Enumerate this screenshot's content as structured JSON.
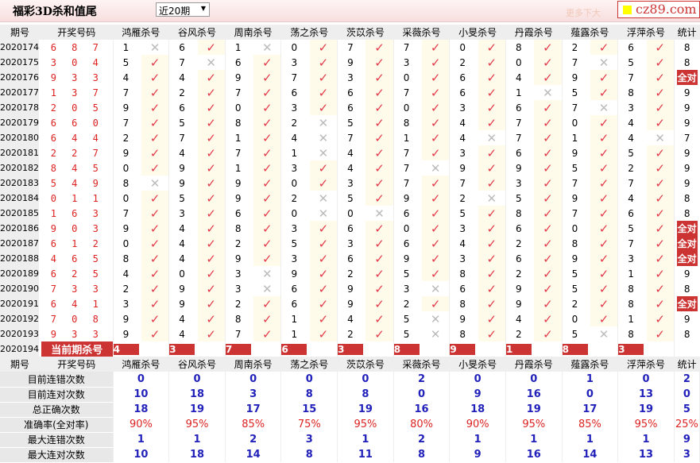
{
  "header": {
    "title": "福彩3D杀和值尾",
    "range_select": "近20期",
    "logo": "cz89.com",
    "faded_text": "更多下大"
  },
  "columns": {
    "period": "期号",
    "winning": "开奖号码",
    "stat": "统计",
    "kills": [
      "鸿雁杀号",
      "谷风杀号",
      "周南杀号",
      "荡之杀号",
      "茨苡杀号",
      "采薇杀号",
      "小旻杀号",
      "丹霞杀号",
      "薤露杀号",
      "浮萍杀号"
    ]
  },
  "marks": {
    "hit": "✓",
    "miss": "✕",
    "all_hit": "全对"
  },
  "rows": [
    {
      "period": "2020174",
      "winning": "6 8 7",
      "kills": [
        [
          1,
          0
        ],
        [
          6,
          1
        ],
        [
          1,
          0
        ],
        [
          0,
          1
        ],
        [
          7,
          1
        ],
        [
          7,
          1
        ],
        [
          0,
          1
        ],
        [
          8,
          1
        ],
        [
          2,
          1
        ],
        [
          6,
          1
        ]
      ],
      "stat": "8"
    },
    {
      "period": "2020175",
      "winning": "3 0 4",
      "kills": [
        [
          5,
          1
        ],
        [
          7,
          0
        ],
        [
          6,
          1
        ],
        [
          3,
          1
        ],
        [
          9,
          1
        ],
        [
          3,
          1
        ],
        [
          2,
          1
        ],
        [
          0,
          1
        ],
        [
          7,
          0
        ],
        [
          5,
          1
        ]
      ],
      "stat": "8"
    },
    {
      "period": "2020176",
      "winning": "9 3 3",
      "kills": [
        [
          4,
          1
        ],
        [
          4,
          1
        ],
        [
          9,
          1
        ],
        [
          7,
          1
        ],
        [
          3,
          1
        ],
        [
          0,
          1
        ],
        [
          6,
          1
        ],
        [
          4,
          1
        ],
        [
          9,
          1
        ],
        [
          7,
          1
        ]
      ],
      "stat": "全对"
    },
    {
      "period": "2020177",
      "winning": "1 3 7",
      "kills": [
        [
          7,
          1
        ],
        [
          2,
          1
        ],
        [
          7,
          1
        ],
        [
          6,
          1
        ],
        [
          6,
          1
        ],
        [
          7,
          1
        ],
        [
          6,
          1
        ],
        [
          1,
          0
        ],
        [
          5,
          1
        ],
        [
          8,
          1
        ]
      ],
      "stat": "9"
    },
    {
      "period": "2020178",
      "winning": "2 0 5",
      "kills": [
        [
          9,
          1
        ],
        [
          6,
          1
        ],
        [
          0,
          1
        ],
        [
          3,
          1
        ],
        [
          6,
          1
        ],
        [
          0,
          1
        ],
        [
          3,
          1
        ],
        [
          6,
          1
        ],
        [
          7,
          0
        ],
        [
          3,
          1
        ]
      ],
      "stat": "9"
    },
    {
      "period": "2020179",
      "winning": "6 6 0",
      "kills": [
        [
          7,
          1
        ],
        [
          5,
          1
        ],
        [
          8,
          1
        ],
        [
          2,
          0
        ],
        [
          5,
          1
        ],
        [
          8,
          1
        ],
        [
          4,
          1
        ],
        [
          7,
          1
        ],
        [
          0,
          1
        ],
        [
          4,
          1
        ]
      ],
      "stat": "9"
    },
    {
      "period": "2020180",
      "winning": "6 4 4",
      "kills": [
        [
          2,
          1
        ],
        [
          7,
          1
        ],
        [
          1,
          1
        ],
        [
          4,
          0
        ],
        [
          7,
          1
        ],
        [
          1,
          1
        ],
        [
          4,
          0
        ],
        [
          7,
          1
        ],
        [
          1,
          1
        ],
        [
          4,
          0
        ]
      ],
      "stat": "7"
    },
    {
      "period": "2020181",
      "winning": "2 2 7",
      "kills": [
        [
          9,
          1
        ],
        [
          4,
          1
        ],
        [
          7,
          1
        ],
        [
          1,
          0
        ],
        [
          4,
          1
        ],
        [
          7,
          1
        ],
        [
          3,
          1
        ],
        [
          6,
          1
        ],
        [
          9,
          1
        ],
        [
          5,
          1
        ]
      ],
      "stat": "9"
    },
    {
      "period": "2020182",
      "winning": "8 4 5",
      "kills": [
        [
          0,
          1
        ],
        [
          9,
          1
        ],
        [
          1,
          1
        ],
        [
          3,
          1
        ],
        [
          4,
          1
        ],
        [
          7,
          0
        ],
        [
          9,
          1
        ],
        [
          9,
          1
        ],
        [
          5,
          1
        ],
        [
          2,
          1
        ]
      ],
      "stat": "9"
    },
    {
      "period": "2020183",
      "winning": "5 4 9",
      "kills": [
        [
          8,
          0
        ],
        [
          9,
          1
        ],
        [
          9,
          1
        ],
        [
          0,
          1
        ],
        [
          3,
          1
        ],
        [
          7,
          1
        ],
        [
          7,
          1
        ],
        [
          3,
          1
        ],
        [
          7,
          1
        ],
        [
          7,
          1
        ]
      ],
      "stat": "9"
    },
    {
      "period": "2020184",
      "winning": "0 1 1",
      "kills": [
        [
          0,
          1
        ],
        [
          5,
          1
        ],
        [
          9,
          1
        ],
        [
          2,
          0
        ],
        [
          5,
          1
        ],
        [
          9,
          1
        ],
        [
          2,
          0
        ],
        [
          5,
          1
        ],
        [
          9,
          1
        ],
        [
          4,
          1
        ]
      ],
      "stat": "8"
    },
    {
      "period": "2020185",
      "winning": "1 6 3",
      "kills": [
        [
          7,
          1
        ],
        [
          3,
          1
        ],
        [
          6,
          1
        ],
        [
          0,
          0
        ],
        [
          0,
          0
        ],
        [
          6,
          1
        ],
        [
          5,
          1
        ],
        [
          8,
          1
        ],
        [
          7,
          1
        ],
        [
          6,
          1
        ]
      ],
      "stat": "8"
    },
    {
      "period": "2020186",
      "winning": "9 0 3",
      "kills": [
        [
          9,
          1
        ],
        [
          4,
          1
        ],
        [
          8,
          1
        ],
        [
          3,
          1
        ],
        [
          6,
          1
        ],
        [
          0,
          1
        ],
        [
          3,
          1
        ],
        [
          6,
          1
        ],
        [
          0,
          1
        ],
        [
          5,
          1
        ]
      ],
      "stat": "全对"
    },
    {
      "period": "2020187",
      "winning": "6 1 2",
      "kills": [
        [
          0,
          1
        ],
        [
          4,
          1
        ],
        [
          2,
          1
        ],
        [
          5,
          1
        ],
        [
          3,
          1
        ],
        [
          6,
          1
        ],
        [
          4,
          1
        ],
        [
          2,
          1
        ],
        [
          8,
          1
        ],
        [
          7,
          1
        ]
      ],
      "stat": "全对"
    },
    {
      "period": "2020188",
      "winning": "4 6 5",
      "kills": [
        [
          8,
          1
        ],
        [
          4,
          1
        ],
        [
          9,
          1
        ],
        [
          3,
          1
        ],
        [
          6,
          1
        ],
        [
          9,
          1
        ],
        [
          3,
          1
        ],
        [
          6,
          1
        ],
        [
          9,
          1
        ],
        [
          3,
          1
        ]
      ],
      "stat": "全对"
    },
    {
      "period": "2020189",
      "winning": "6 2 5",
      "kills": [
        [
          4,
          1
        ],
        [
          0,
          1
        ],
        [
          3,
          0
        ],
        [
          9,
          1
        ],
        [
          2,
          1
        ],
        [
          5,
          1
        ],
        [
          8,
          1
        ],
        [
          2,
          1
        ],
        [
          5,
          1
        ],
        [
          1,
          1
        ]
      ],
      "stat": "9"
    },
    {
      "period": "2020190",
      "winning": "7 3 3",
      "kills": [
        [
          2,
          1
        ],
        [
          9,
          1
        ],
        [
          3,
          0
        ],
        [
          6,
          1
        ],
        [
          9,
          1
        ],
        [
          3,
          0
        ],
        [
          6,
          1
        ],
        [
          9,
          1
        ],
        [
          5,
          1
        ],
        [
          8,
          1
        ]
      ],
      "stat": "8"
    },
    {
      "period": "2020191",
      "winning": "6 4 1",
      "kills": [
        [
          3,
          1
        ],
        [
          9,
          1
        ],
        [
          2,
          1
        ],
        [
          6,
          1
        ],
        [
          9,
          1
        ],
        [
          2,
          1
        ],
        [
          8,
          1
        ],
        [
          9,
          1
        ],
        [
          2,
          1
        ],
        [
          8,
          1
        ]
      ],
      "stat": "全对"
    },
    {
      "period": "2020192",
      "winning": "7 0 8",
      "kills": [
        [
          9,
          1
        ],
        [
          4,
          1
        ],
        [
          8,
          1
        ],
        [
          1,
          1
        ],
        [
          4,
          1
        ],
        [
          5,
          0
        ],
        [
          9,
          1
        ],
        [
          4,
          1
        ],
        [
          0,
          1
        ],
        [
          1,
          1
        ]
      ],
      "stat": "9"
    },
    {
      "period": "2020193",
      "winning": "9 3 3",
      "kills": [
        [
          9,
          1
        ],
        [
          4,
          1
        ],
        [
          7,
          1
        ],
        [
          1,
          1
        ],
        [
          2,
          1
        ],
        [
          5,
          0
        ],
        [
          8,
          1
        ],
        [
          2,
          1
        ],
        [
          5,
          0
        ],
        [
          8,
          1
        ]
      ],
      "stat": "8"
    }
  ],
  "current": {
    "period": "2020194",
    "label": "当前期杀号",
    "kills": [
      "4",
      "3",
      "7",
      "6",
      "3",
      "8",
      "9",
      "1",
      "8",
      "3"
    ]
  },
  "stats": [
    {
      "label": "目前连错次数",
      "values": [
        "0",
        "0",
        "0",
        "0",
        "0",
        "2",
        "0",
        "0",
        "1",
        "0",
        "2"
      ]
    },
    {
      "label": "目前连对次数",
      "values": [
        "10",
        "18",
        "3",
        "8",
        "8",
        "0",
        "9",
        "16",
        "0",
        "13",
        "0"
      ]
    },
    {
      "label": "总正确次数",
      "values": [
        "18",
        "19",
        "17",
        "15",
        "19",
        "16",
        "18",
        "19",
        "17",
        "19",
        "5"
      ]
    },
    {
      "label": "准确率(全对率)",
      "values": [
        "90%",
        "95%",
        "85%",
        "75%",
        "95%",
        "80%",
        "90%",
        "95%",
        "85%",
        "95%",
        "25%"
      ],
      "pct": true
    },
    {
      "label": "最大连错次数",
      "values": [
        "1",
        "1",
        "2",
        "3",
        "1",
        "2",
        "1",
        "1",
        "1",
        "1",
        "9"
      ]
    },
    {
      "label": "最大连对次数",
      "values": [
        "10",
        "18",
        "14",
        "8",
        "11",
        "8",
        "9",
        "16",
        "14",
        "13",
        "3"
      ]
    }
  ]
}
